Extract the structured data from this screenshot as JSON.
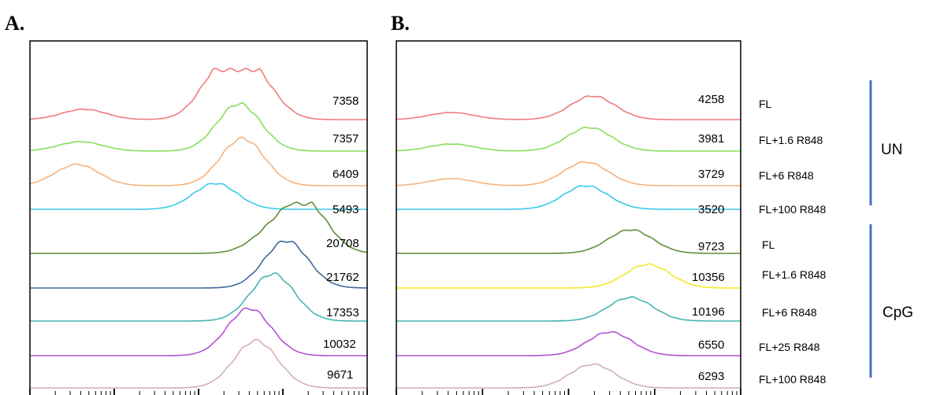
{
  "panels": [
    {
      "letter": "A.",
      "histograms": [
        {
          "mfi": "7358",
          "color": "#f07c7c"
        },
        {
          "mfi": "7357",
          "color": "#86e05a"
        },
        {
          "mfi": "6409",
          "color": "#f7b27a"
        },
        {
          "mfi": "5493",
          "color": "#3cc8ec"
        },
        {
          "mfi": "20708",
          "color": "#5e8f3a"
        },
        {
          "mfi": "21762",
          "color": "#40699a"
        },
        {
          "mfi": "17353",
          "color": "#46b4b4"
        },
        {
          "mfi": "10032",
          "color": "#b452d2"
        },
        {
          "mfi": "9671",
          "color": "#d4b0ae"
        }
      ]
    },
    {
      "letter": "B.",
      "histograms": [
        {
          "mfi": "4258",
          "color": "#f07c7c"
        },
        {
          "mfi": "3981",
          "color": "#86e05a"
        },
        {
          "mfi": "3729",
          "color": "#f7b27a"
        },
        {
          "mfi": "3520",
          "color": "#3cc8ec"
        },
        {
          "mfi": "9723",
          "color": "#5e8f3a"
        },
        {
          "mfi": "10356",
          "color": "#f4e82a"
        },
        {
          "mfi": "10196",
          "color": "#46b4b4"
        },
        {
          "mfi": "6550",
          "color": "#b452d2"
        },
        {
          "mfi": "6293",
          "color": "#d4b0ae"
        }
      ]
    }
  ],
  "conditions": [
    "FL",
    "FL+1.6 R848",
    "FL+6 R848",
    "FL+100 R848",
    "FL",
    "FL+1.6 R848",
    "FL+6 R848",
    "FL+25 R848",
    "FL+100 R848"
  ],
  "groups": [
    {
      "label": "UN",
      "color": "#4472c4"
    },
    {
      "label": "CpG",
      "color": "#4472c4"
    }
  ],
  "chart_data": [
    {
      "type": "area",
      "panel": "A.",
      "x_scale": "log",
      "series": [
        {
          "mfi": 7358,
          "color": "#f07c7c",
          "peaks": [
            [
              0.16,
              0.22
            ],
            [
              0.57,
              1.0
            ],
            [
              0.665,
              0.85
            ]
          ]
        },
        {
          "mfi": 7357,
          "color": "#86e05a",
          "peaks": [
            [
              0.15,
              0.2
            ],
            [
              0.62,
              1.0
            ]
          ]
        },
        {
          "mfi": 6409,
          "color": "#f7b27a",
          "peaks": [
            [
              0.14,
              0.45
            ],
            [
              0.63,
              1.0
            ]
          ]
        },
        {
          "mfi": 5493,
          "color": "#3cc8ec",
          "peaks": [
            [
              0.55,
              0.55
            ]
          ]
        },
        {
          "mfi": 20708,
          "color": "#5e8f3a",
          "peaks": [
            [
              0.72,
              0.42
            ],
            [
              0.82,
              1.0
            ]
          ]
        },
        {
          "mfi": 21762,
          "color": "#40699a",
          "peaks": [
            [
              0.76,
              1.0
            ]
          ]
        },
        {
          "mfi": 17353,
          "color": "#46b4b4",
          "peaks": [
            [
              0.72,
              1.0
            ]
          ]
        },
        {
          "mfi": 10032,
          "color": "#b452d2",
          "peaks": [
            [
              0.65,
              1.0
            ]
          ]
        },
        {
          "mfi": 9671,
          "color": "#d4b0ae",
          "peaks": [
            [
              0.67,
              1.0
            ]
          ]
        }
      ]
    },
    {
      "type": "area",
      "panel": "B.",
      "x_scale": "log",
      "series": [
        {
          "mfi": 4258,
          "color": "#f07c7c",
          "peaks": [
            [
              0.16,
              0.3
            ],
            [
              0.57,
              1.0
            ]
          ]
        },
        {
          "mfi": 3981,
          "color": "#86e05a",
          "peaks": [
            [
              0.16,
              0.3
            ],
            [
              0.56,
              1.0
            ]
          ]
        },
        {
          "mfi": 3729,
          "color": "#f7b27a",
          "peaks": [
            [
              0.16,
              0.3
            ],
            [
              0.55,
              1.0
            ]
          ]
        },
        {
          "mfi": 3520,
          "color": "#3cc8ec",
          "peaks": [
            [
              0.55,
              1.0
            ]
          ]
        },
        {
          "mfi": 9723,
          "color": "#5e8f3a",
          "peaks": [
            [
              0.68,
              1.0
            ]
          ]
        },
        {
          "mfi": 10356,
          "color": "#f4e82a",
          "peaks": [
            [
              0.73,
              1.0
            ]
          ]
        },
        {
          "mfi": 10196,
          "color": "#46b4b4",
          "peaks": [
            [
              0.68,
              1.0
            ]
          ]
        },
        {
          "mfi": 6550,
          "color": "#b452d2",
          "peaks": [
            [
              0.62,
              1.0
            ]
          ]
        },
        {
          "mfi": 6293,
          "color": "#d4b0ae",
          "peaks": [
            [
              0.57,
              1.0
            ]
          ]
        }
      ]
    }
  ]
}
